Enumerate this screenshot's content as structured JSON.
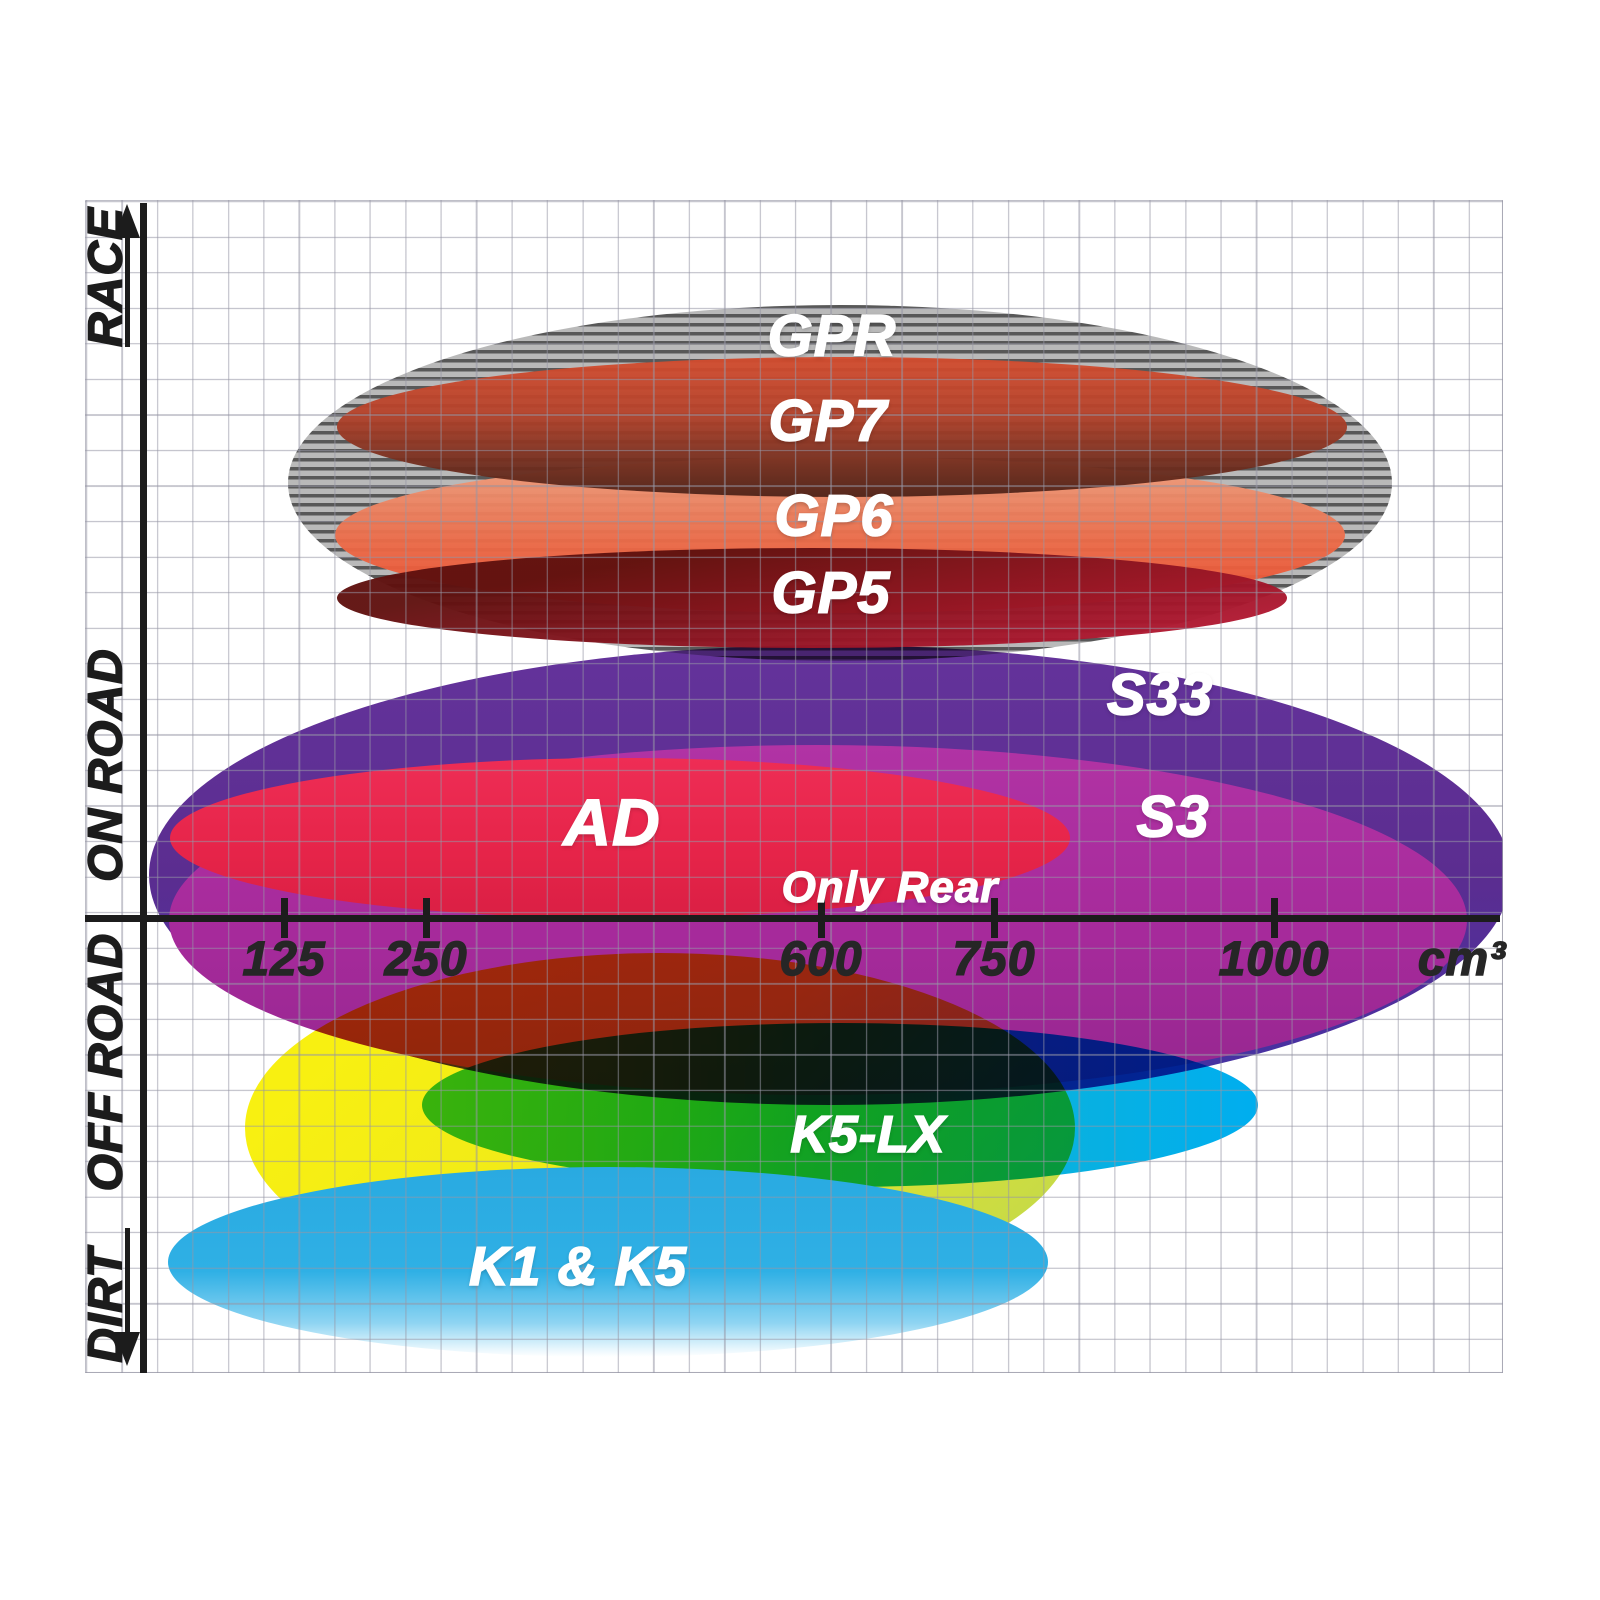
{
  "x_axis": {
    "ticks": [
      "125",
      "250",
      "600",
      "750",
      "1000"
    ],
    "unit": "cm³"
  },
  "y_axis": {
    "zones": [
      "RACE",
      "ON ROAD",
      "OFF ROAD",
      "DIRT"
    ]
  },
  "products": {
    "gpr": "GPR",
    "gp7": "GP7",
    "gp6": "GP6",
    "gp5": "GP5",
    "s33": "S33",
    "s3": "S3",
    "ad": "AD",
    "ad_note": "Only Rear",
    "k5lx": "K5-LX",
    "k1k5": "K1 & K5"
  },
  "colors": {
    "axis": "#1c1c1c",
    "grid_line": "#9696a5",
    "gpr_stripe_dark": "#585858",
    "gpr_stripe_light": "#b9b9b9",
    "gp7_top": "#d44c2e",
    "gp7_bottom": "#4e2319",
    "gp6_top": "#efa483",
    "gp6_bottom": "#ee4a2c",
    "gp5_dark": "#5f100e",
    "gp5_bright": "#c11a39",
    "s33_purple": "#5b2d90",
    "s3_magenta": "#a62a9b",
    "ad_crimson": "#e62449",
    "k5_yellow": "#f6ed13",
    "k5lx_teal": "#3cc096",
    "k5lx_cyan": "#00aeef",
    "k1k5_blue": "#29aae1"
  },
  "chart_data": {
    "type": "bubble",
    "title": "Brake pad compound positioning by engine displacement and riding discipline",
    "xlabel": "cm³",
    "ylabel": "",
    "x_ticks": [
      125,
      250,
      600,
      750,
      1000
    ],
    "x_range": [
      0,
      1200
    ],
    "y_zones": [
      "RACE",
      "ON ROAD",
      "OFF ROAD",
      "DIRT"
    ],
    "grid": true,
    "legend": "labels inside ellipses",
    "series": [
      {
        "name": "GPR",
        "zone": "RACE",
        "cc_range": [
          130,
          1100
        ],
        "style": "grey hatched ellipse"
      },
      {
        "name": "GP7",
        "zone": "RACE",
        "cc_range": [
          175,
          1055
        ],
        "style": "red to dark-brown gradient ellipse"
      },
      {
        "name": "GP6",
        "zone": "RACE / ON ROAD",
        "cc_range": [
          170,
          1040
        ],
        "style": "salmon to orange-red gradient ellipse"
      },
      {
        "name": "GP5",
        "zone": "RACE / ON ROAD",
        "cc_range": [
          175,
          1010
        ],
        "style": "dark red to crimson ellipse"
      },
      {
        "name": "S33",
        "zone": "ON ROAD",
        "cc_range": [
          5,
          1215
        ],
        "style": "purple ellipse"
      },
      {
        "name": "S3",
        "zone": "ON ROAD",
        "cc_range": [
          25,
          1175
        ],
        "style": "magenta ellipse"
      },
      {
        "name": "AD",
        "zone": "ON ROAD",
        "cc_range": [
          25,
          820
        ],
        "note": "Only Rear",
        "style": "crimson ellipse"
      },
      {
        "name": "K5-LX",
        "zone": "OFF ROAD",
        "cc_range": [
          90,
          990
        ],
        "style": "yellow + teal-cyan overlapping ellipses"
      },
      {
        "name": "K1 & K5",
        "zone": "DIRT",
        "cc_range": [
          20,
          800
        ],
        "style": "light blue ellipse fading to white"
      }
    ]
  }
}
